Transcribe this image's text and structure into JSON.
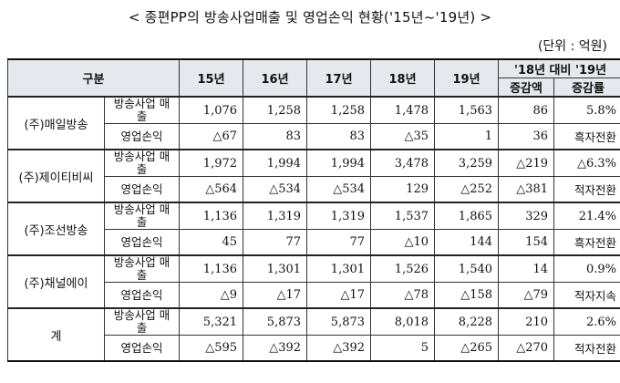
{
  "title": "< 종편PP의 방송사업매출 및 영업손익 현황('15년~'19년) >",
  "unit": "(단위 : 억원)",
  "header": {
    "category": "구분",
    "years": [
      "15년",
      "16년",
      "17년",
      "18년",
      "19년"
    ],
    "compare": "'18년 대비 '19년",
    "change_amount": "증감액",
    "change_rate": "증감률"
  },
  "rows": [
    {
      "company": "(주)매일방송",
      "revenue": {
        "label": "방송사업 매출",
        "values": [
          "1,076",
          "1,258",
          "1,258",
          "1,478",
          "1,563"
        ],
        "change": "86",
        "rate": "5.8%"
      },
      "profit": {
        "label": "영업손익",
        "values": [
          "△67",
          "83",
          "83",
          "△35",
          "1"
        ],
        "change": "36",
        "rate": "흑자전환"
      }
    },
    {
      "company": "(주)제이티비씨",
      "revenue": {
        "label": "방송사업 매출",
        "values": [
          "1,972",
          "1,994",
          "1,994",
          "3,478",
          "3,259"
        ],
        "change": "△219",
        "rate": "△6.3%"
      },
      "profit": {
        "label": "영업손익",
        "values": [
          "△564",
          "△534",
          "△534",
          "129",
          "△252"
        ],
        "change": "△381",
        "rate": "적자전환"
      }
    },
    {
      "company": "(주)조선방송",
      "revenue": {
        "label": "방송사업 매출",
        "values": [
          "1,136",
          "1,319",
          "1,319",
          "1,537",
          "1,865"
        ],
        "change": "329",
        "rate": "21.4%"
      },
      "profit": {
        "label": "영업손익",
        "values": [
          "45",
          "77",
          "77",
          "△10",
          "144"
        ],
        "change": "154",
        "rate": "흑자전환"
      }
    },
    {
      "company": "(주)채널에이",
      "revenue": {
        "label": "방송사업 매출",
        "values": [
          "1,136",
          "1,301",
          "1,301",
          "1,526",
          "1,540"
        ],
        "change": "14",
        "rate": "0.9%"
      },
      "profit": {
        "label": "영업손익",
        "values": [
          "△9",
          "△17",
          "△17",
          "△78",
          "△158"
        ],
        "change": "△79",
        "rate": "적자지속"
      }
    },
    {
      "company": "계",
      "revenue": {
        "label": "방송사업 매출",
        "values": [
          "5,321",
          "5,873",
          "5,873",
          "8,018",
          "8,228"
        ],
        "change": "210",
        "rate": "2.6%"
      },
      "profit": {
        "label": "영업손익",
        "values": [
          "△595",
          "△392",
          "△392",
          "5",
          "△265"
        ],
        "change": "△270",
        "rate": "적자전환"
      }
    }
  ]
}
